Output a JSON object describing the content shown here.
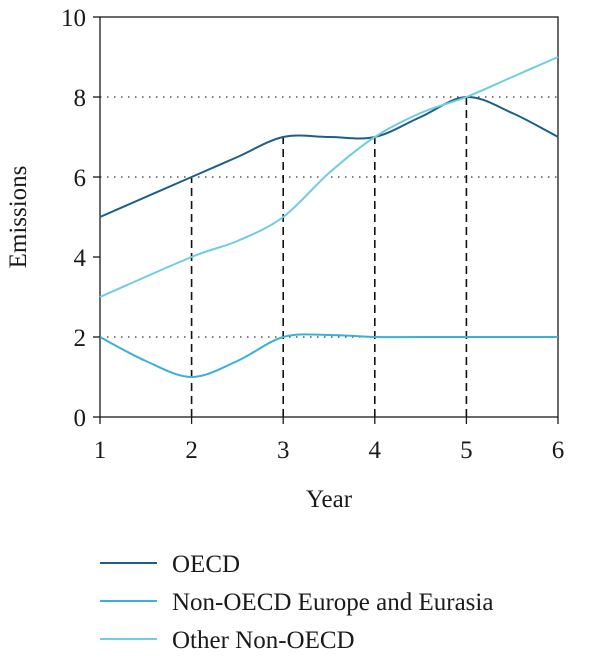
{
  "chart_data": {
    "type": "line",
    "xlabel": "Year",
    "ylabel": "Emissions",
    "xlim": [
      1,
      6
    ],
    "ylim": [
      0,
      10
    ],
    "x_ticks": [
      "1",
      "2",
      "3",
      "4",
      "5",
      "6"
    ],
    "y_ticks": [
      "0",
      "2",
      "4",
      "6",
      "8",
      "10"
    ],
    "grid": "dotted horizontal at y = 2, 6, 8",
    "drop_lines": "dashed vertical at x = 2, 3, 4, 5",
    "legend_position": "bottom",
    "series": [
      {
        "name": "OECD",
        "color": "#1d5f86",
        "x": [
          1,
          2,
          2.5,
          3,
          3.5,
          4,
          4.5,
          5,
          5.5,
          6
        ],
        "y": [
          5,
          6,
          6.5,
          7,
          7,
          7,
          7.5,
          8,
          7.6,
          7
        ]
      },
      {
        "name": "Non-OECD Europe and Eurasia",
        "color": "#3ab0dc",
        "x": [
          1,
          1.5,
          2,
          2.5,
          3,
          3.5,
          4,
          4.5,
          5,
          5.5,
          6
        ],
        "y": [
          2,
          1.4,
          1,
          1.4,
          2,
          2.05,
          2,
          2,
          2,
          2,
          2
        ]
      },
      {
        "name": "Other Non-OECD",
        "color": "#6ecde2",
        "x": [
          1,
          2,
          2.5,
          3,
          3.5,
          4,
          4.5,
          5,
          5.5,
          6
        ],
        "y": [
          3,
          4,
          4.4,
          5,
          6.1,
          7,
          7.6,
          8,
          8.5,
          9
        ]
      }
    ]
  }
}
